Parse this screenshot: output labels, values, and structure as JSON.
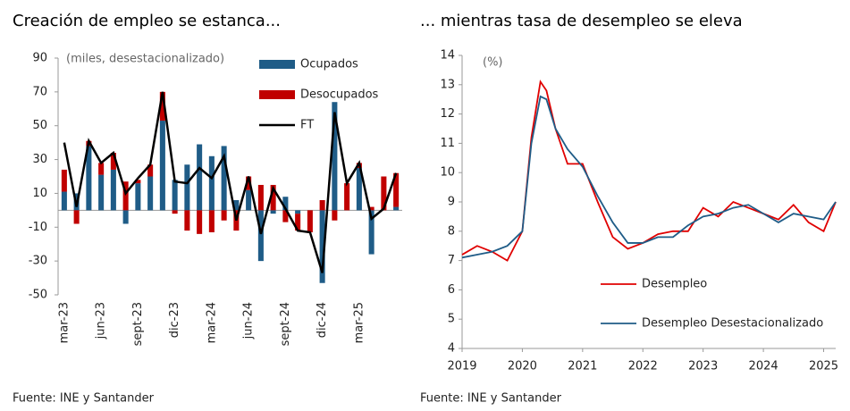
{
  "chart_data": [
    {
      "type": "bar",
      "stacked": true,
      "title": "Creación de empleo se estanca...",
      "annotation": "(miles, desestacionalizado)",
      "source": "Fuente: INE y Santander",
      "categories": [
        "mar-23",
        null,
        null,
        "jun-23",
        null,
        null,
        "sept-23",
        null,
        null,
        "dic-23",
        null,
        null,
        "mar-24",
        null,
        null,
        "jun-24",
        null,
        null,
        "sept-24",
        null,
        null,
        "dic-24",
        null,
        null,
        "mar-25",
        null,
        null,
        null
      ],
      "series": [
        {
          "name": "Ocupados",
          "color": "#1f5c87",
          "type": "bar",
          "values": [
            11,
            10,
            38,
            21,
            24,
            -8,
            16,
            20,
            53,
            18,
            27,
            39,
            32,
            38,
            6,
            12,
            -30,
            -2,
            8,
            -2,
            0,
            -43,
            64,
            0,
            25,
            -26,
            0,
            2
          ]
        },
        {
          "name": "Desocupados",
          "color": "#c00000",
          "type": "bar",
          "values": [
            13,
            -8,
            3,
            7,
            10,
            17,
            2,
            7,
            17,
            -2,
            -12,
            -14,
            -13,
            -6,
            -12,
            8,
            15,
            15,
            -7,
            -10,
            -13,
            6,
            -6,
            16,
            3,
            2,
            20,
            20
          ]
        },
        {
          "name": "FT",
          "color": "#000000",
          "type": "line",
          "values": [
            40,
            2,
            41,
            28,
            34,
            10,
            19,
            27,
            70,
            17,
            16,
            25,
            19,
            32,
            -6,
            20,
            -14,
            13,
            1,
            -12,
            -13,
            -37,
            58,
            16,
            28,
            -5,
            1,
            22
          ]
        }
      ],
      "ylim": [
        -50,
        90
      ],
      "yticks": [
        90,
        70,
        50,
        30,
        10,
        -10,
        -30,
        -50
      ]
    },
    {
      "type": "line",
      "title": "... mientras tasa de desempleo se eleva",
      "annotation": "(%)",
      "source": "Fuente: INE y Santander",
      "x": [
        2019,
        2019.25,
        2019.5,
        2019.75,
        2020,
        2020.15,
        2020.3,
        2020.4,
        2020.55,
        2020.75,
        2021,
        2021.25,
        2021.5,
        2021.75,
        2022,
        2022.25,
        2022.5,
        2022.75,
        2023,
        2023.25,
        2023.5,
        2023.75,
        2024,
        2024.25,
        2024.5,
        2024.75,
        2025,
        2025.2
      ],
      "series": [
        {
          "name": "Desempleo",
          "color": "#e00000",
          "values": [
            7.2,
            7.5,
            7.3,
            7.0,
            8.0,
            11.2,
            13.1,
            12.8,
            11.5,
            10.3,
            10.3,
            9.0,
            7.8,
            7.4,
            7.6,
            7.9,
            8.0,
            8.0,
            8.8,
            8.5,
            9.0,
            8.8,
            8.6,
            8.4,
            8.9,
            8.3,
            8.0,
            9.0
          ]
        },
        {
          "name": "Desempleo Desestacionalizado",
          "color": "#1f5c87",
          "values": [
            7.1,
            7.2,
            7.3,
            7.5,
            8.0,
            11.0,
            12.6,
            12.5,
            11.5,
            10.8,
            10.2,
            9.2,
            8.3,
            7.6,
            7.6,
            7.8,
            7.8,
            8.2,
            8.5,
            8.6,
            8.8,
            8.9,
            8.6,
            8.3,
            8.6,
            8.5,
            8.4,
            9.0
          ]
        }
      ],
      "xlim": [
        2019,
        2025.2
      ],
      "xticks": [
        2019,
        2020,
        2021,
        2022,
        2023,
        2024,
        2025
      ],
      "ylim": [
        4,
        14
      ],
      "yticks": [
        4,
        5,
        6,
        7,
        8,
        9,
        10,
        11,
        12,
        13,
        14
      ]
    }
  ]
}
